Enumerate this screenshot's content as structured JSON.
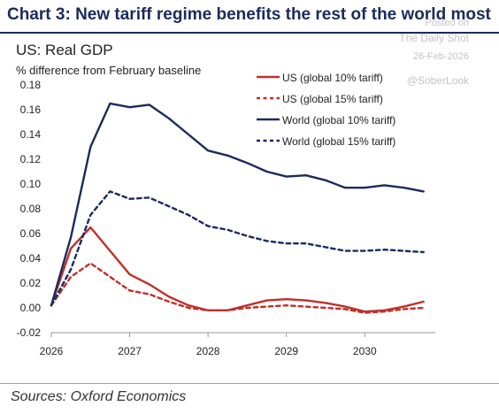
{
  "header": {
    "title": "Chart 3: New tariff regime benefits the rest of the world most"
  },
  "watermark": {
    "posted_on": "Posted on",
    "source_name": "The Daily Shot",
    "date": "26-Feb-2026",
    "handle": "@SoberLook"
  },
  "footer": {
    "source": "Sources: Oxford Economics"
  },
  "colors": {
    "us": "#c0302b",
    "world": "#1b2b5a"
  },
  "chart_data": {
    "type": "line",
    "title": "US: Real GDP",
    "ylabel": "% difference from February baseline",
    "xlabel": "",
    "ylim": [
      -0.02,
      0.18
    ],
    "yticks": [
      "0.18",
      "0.16",
      "0.14",
      "0.12",
      "0.10",
      "0.08",
      "0.06",
      "0.04",
      "0.02",
      "0.00",
      "-0.02"
    ],
    "xlim": [
      2026,
      2030.9
    ],
    "xticks": [
      "2026",
      "2027",
      "2028",
      "2029",
      "2030"
    ],
    "legend_position": "top-right",
    "x": [
      2026.0,
      2026.25,
      2026.5,
      2026.75,
      2027.0,
      2027.25,
      2027.5,
      2027.75,
      2028.0,
      2028.25,
      2028.5,
      2028.75,
      2029.0,
      2029.25,
      2029.5,
      2029.75,
      2030.0,
      2030.25,
      2030.5,
      2030.75
    ],
    "series": [
      {
        "name": "US (global 10% tariff)",
        "color": "#c0302b",
        "dash": false,
        "values": [
          0.002,
          0.048,
          0.065,
          0.046,
          0.027,
          0.019,
          0.009,
          0.002,
          -0.002,
          -0.002,
          0.002,
          0.006,
          0.007,
          0.006,
          0.004,
          0.001,
          -0.003,
          -0.002,
          0.001,
          0.005
        ]
      },
      {
        "name": "US (global 15% tariff)",
        "color": "#c0302b",
        "dash": true,
        "values": [
          0.002,
          0.025,
          0.036,
          0.025,
          0.014,
          0.011,
          0.005,
          0.0,
          -0.002,
          -0.002,
          0.0,
          0.001,
          0.002,
          0.001,
          0.0,
          -0.001,
          -0.004,
          -0.003,
          -0.001,
          0.0
        ]
      },
      {
        "name": "World (global 10% tariff)",
        "color": "#1b2b5a",
        "dash": false,
        "values": [
          0.002,
          0.057,
          0.13,
          0.165,
          0.162,
          0.164,
          0.153,
          0.14,
          0.127,
          0.123,
          0.117,
          0.11,
          0.106,
          0.107,
          0.103,
          0.097,
          0.097,
          0.099,
          0.097,
          0.094
        ]
      },
      {
        "name": "World (global 15% tariff)",
        "color": "#1b2b5a",
        "dash": true,
        "values": [
          0.002,
          0.031,
          0.075,
          0.094,
          0.088,
          0.089,
          0.082,
          0.075,
          0.066,
          0.063,
          0.058,
          0.054,
          0.052,
          0.052,
          0.049,
          0.046,
          0.046,
          0.047,
          0.046,
          0.045
        ]
      }
    ]
  }
}
